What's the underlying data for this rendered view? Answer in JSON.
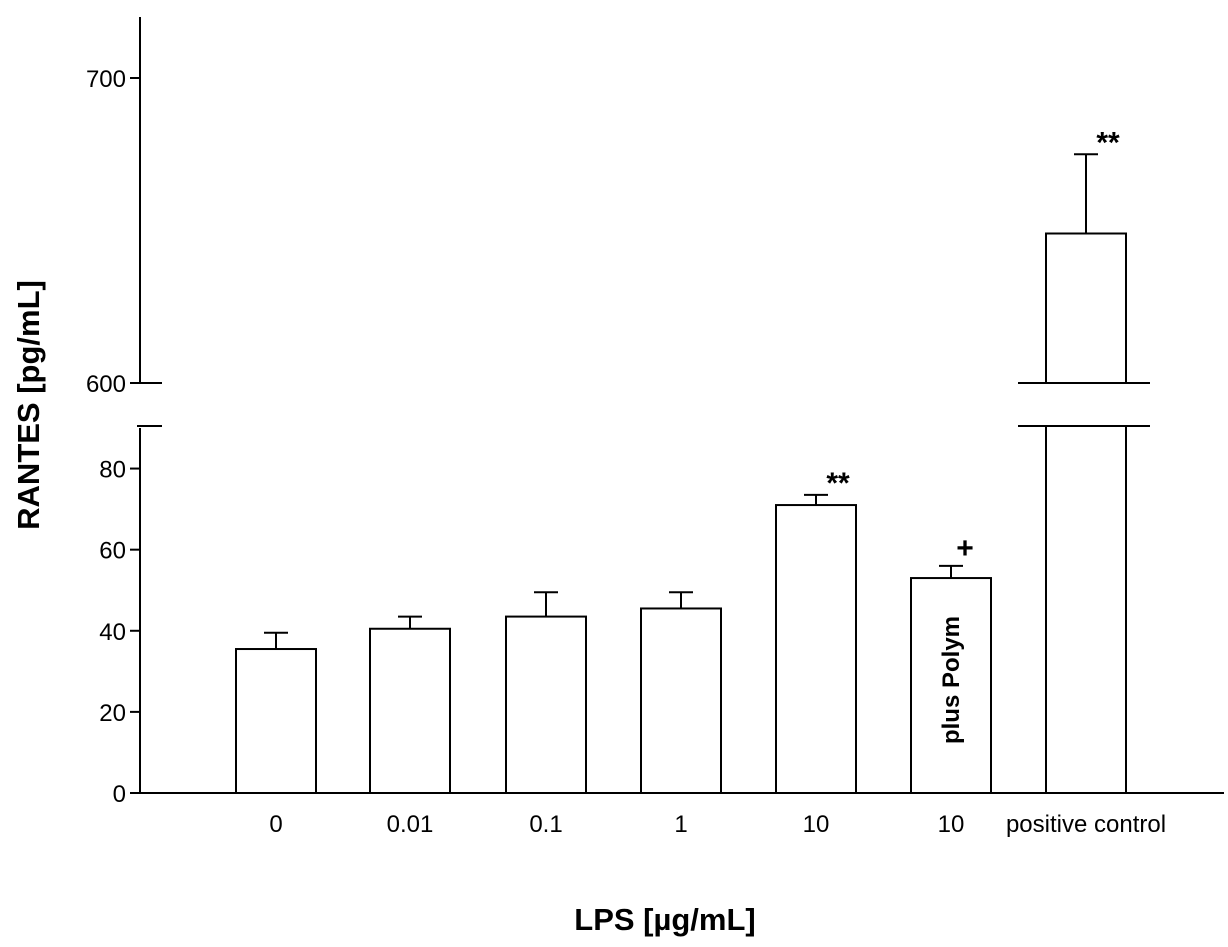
{
  "chart_data": {
    "type": "bar",
    "xlabel": "LPS [µg/mL]",
    "ylabel": "RANTES [pg/mL]",
    "y_axis_break": true,
    "lower_segment_ylim": [
      0,
      90
    ],
    "upper_segment_ylim": [
      600,
      720
    ],
    "lower_ticks": [
      0,
      20,
      40,
      60,
      80
    ],
    "upper_ticks": [
      600,
      700
    ],
    "grid": false,
    "categories": [
      "0",
      "0.01",
      "0.1",
      "1",
      "10",
      "10",
      "positive control"
    ],
    "values": [
      35.5,
      40.5,
      43.5,
      45.5,
      71,
      53,
      649
    ],
    "error": [
      4,
      3,
      6,
      4,
      2.5,
      3,
      26
    ],
    "bar_annotations": [
      "",
      "",
      "",
      "",
      "**",
      "+",
      "**"
    ],
    "bar_inner_labels": [
      "",
      "",
      "",
      "",
      "",
      "plus Polym",
      ""
    ]
  }
}
